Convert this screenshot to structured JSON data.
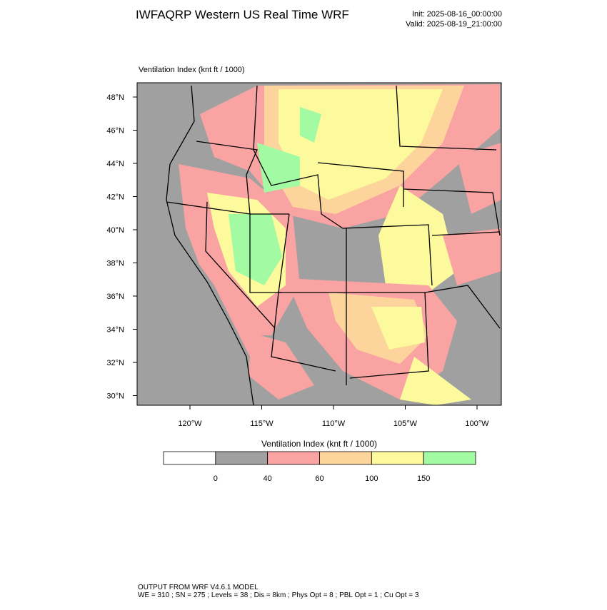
{
  "header": {
    "title": "IWFAQRP Western US Real Time WRF",
    "init": "Init: 2025-08-16_00:00:00",
    "valid": "Valid: 2025-08-19_21:00:00"
  },
  "map": {
    "subtitle": "Ventilation Index   (knt ft / 1000)",
    "lat_labels": [
      "48°N",
      "46°N",
      "44°N",
      "42°N",
      "40°N",
      "38°N",
      "36°N",
      "34°N",
      "32°N",
      "30°N"
    ],
    "lon_labels": [
      "120°W",
      "115°W",
      "110°W",
      "105°W",
      "100°W"
    ]
  },
  "colorbar": {
    "title": "Ventilation Index   (knt ft / 1000)",
    "colors": [
      "#ffffff",
      "#a0a0a0",
      "#f9a3a3",
      "#fdd59c",
      "#fcfa9c",
      "#a2faa2"
    ],
    "ticks": [
      0,
      40,
      60,
      100,
      150
    ]
  },
  "footer": {
    "line1": "OUTPUT FROM WRF V4.6.1 MODEL",
    "line2": "WE = 310 ; SN = 275 ; Levels = 38 ; Dis = 8km ; Phys Opt = 8 ; PBL Opt = 1 ; Cu Opt = 3"
  }
}
